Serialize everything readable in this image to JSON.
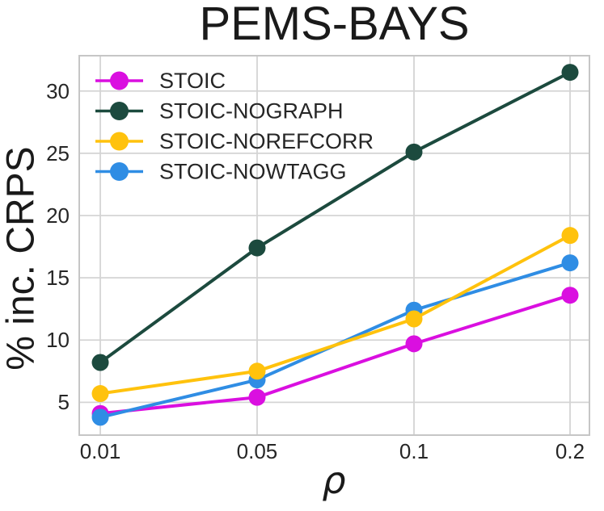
{
  "chart_data": {
    "type": "line",
    "title": "PEMS-BAYS",
    "xlabel": "ρ",
    "ylabel": "% inc. CRPS",
    "x_tick_labels": [
      "0.01",
      "0.05",
      "0.1",
      "0.2"
    ],
    "x_values": [
      0.01,
      0.05,
      0.1,
      0.2
    ],
    "y_ticks": [
      5,
      10,
      15,
      20,
      25,
      30
    ],
    "ylim": [
      2.3,
      32.9
    ],
    "grid": true,
    "legend_position": "upper-left",
    "series": [
      {
        "name": "STOIC",
        "color": "#DA0FE0",
        "values": [
          4.1,
          5.4,
          9.7,
          13.6
        ]
      },
      {
        "name": "STOIC-NOGRAPH",
        "color": "#1C4A3E",
        "values": [
          8.2,
          17.4,
          25.1,
          31.5
        ]
      },
      {
        "name": "STOIC-NOREFCORR",
        "color": "#FFC20D",
        "values": [
          5.7,
          7.5,
          11.7,
          18.4
        ]
      },
      {
        "name": "STOIC-NOWTAGG",
        "color": "#2F8DE4",
        "values": [
          3.8,
          6.8,
          12.4,
          16.2
        ]
      }
    ],
    "style": {
      "grid_color": "#d4d4d4",
      "spine_color": "#c6c6c6",
      "background": "#ffffff"
    }
  }
}
